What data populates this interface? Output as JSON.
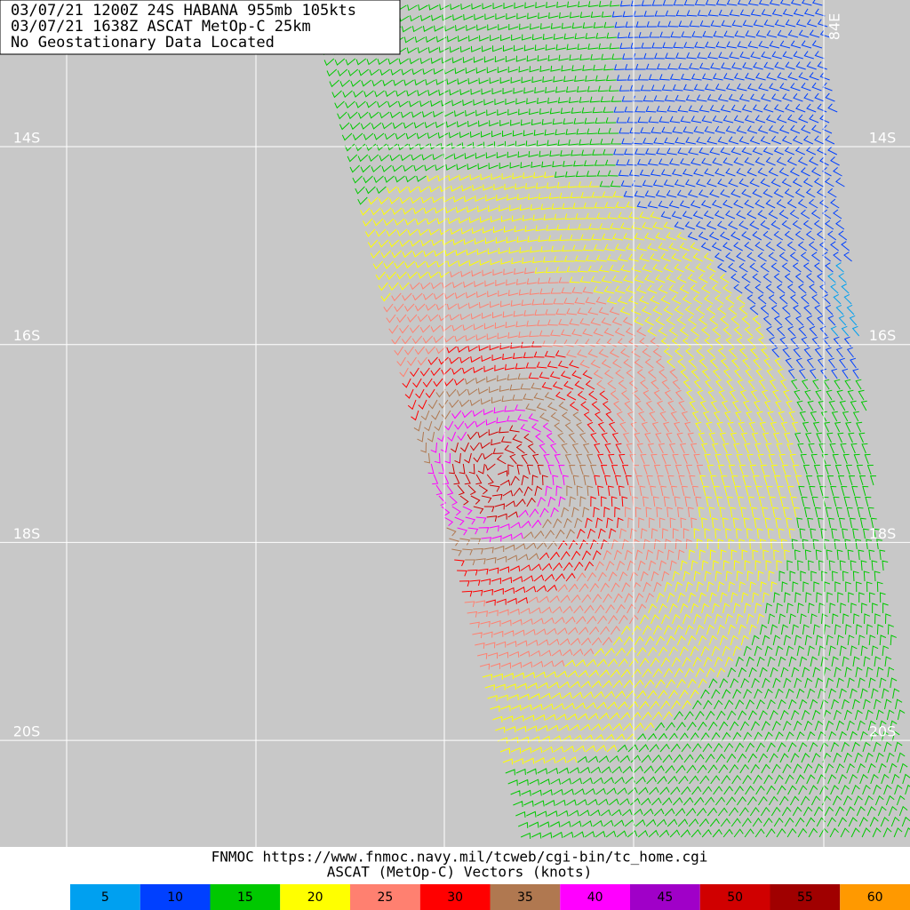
{
  "header": {
    "lines": [
      "03/07/21 1200Z  24S HABANA 955mb 105kts",
      "03/07/21 1638Z  ASCAT MetOp-C 25km",
      "No Geostationary Data Located"
    ]
  },
  "grid": {
    "lat_labels": [
      "14S",
      "16S",
      "18S",
      "20S"
    ],
    "lon_labels": [
      "84E"
    ]
  },
  "footer": {
    "lines": [
      "FNMOC https://www.fnmoc.navy.mil/tcweb/cgi-bin/tc_home.cgi",
      "ASCAT (MetOp-C) Vectors (knots)"
    ]
  },
  "legend": {
    "items": [
      {
        "label": "5",
        "color": "#00a0f0"
      },
      {
        "label": "10",
        "color": "#0040ff"
      },
      {
        "label": "15",
        "color": "#00c800"
      },
      {
        "label": "20",
        "color": "#ffff00"
      },
      {
        "label": "25",
        "color": "#ff8070"
      },
      {
        "label": "30",
        "color": "#ff0000"
      },
      {
        "label": "35",
        "color": "#b07850"
      },
      {
        "label": "40",
        "color": "#ff00ff"
      },
      {
        "label": "45",
        "color": "#a000c8"
      },
      {
        "label": "50",
        "color": "#d00000"
      },
      {
        "label": "55",
        "color": "#a00000"
      },
      {
        "label": "60",
        "color": "#ff9900"
      }
    ]
  }
}
